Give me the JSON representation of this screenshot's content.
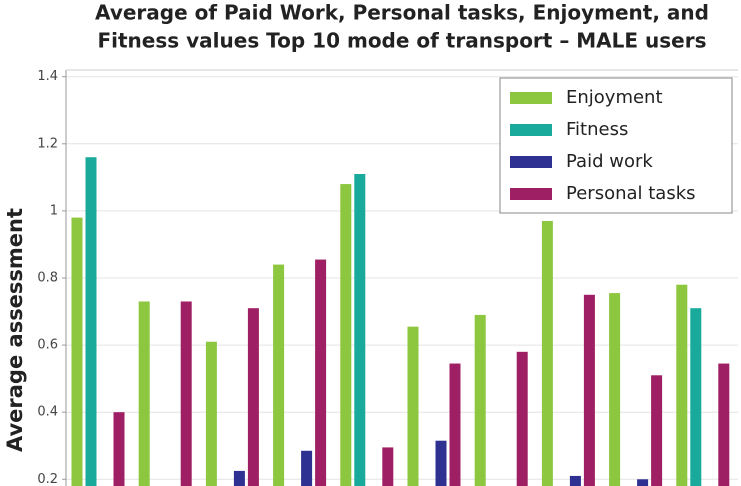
{
  "chart_data": {
    "type": "bar",
    "title": [
      "Average of Paid Work, Personal tasks, Enjoyment, and",
      "Fitness values Top 10 mode of transport – MALE users"
    ],
    "y_label": "Average assessment",
    "categories": [
      null,
      null,
      null,
      null,
      null,
      null,
      null,
      null,
      null,
      null
    ],
    "series": [
      {
        "name": "Enjoyment",
        "color": "#8dc63f",
        "values": [
          0.98,
          0.73,
          0.61,
          0.84,
          1.08,
          0.655,
          0.69,
          0.97,
          0.755,
          0.78
        ]
      },
      {
        "name": "Fitness",
        "color": "#1aaa9b",
        "values": [
          1.16,
          null,
          null,
          null,
          1.11,
          null,
          null,
          null,
          null,
          0.71
        ]
      },
      {
        "name": "Paid work",
        "color": "#2e3192",
        "values": [
          null,
          null,
          0.225,
          0.285,
          null,
          0.315,
          null,
          0.21,
          0.2,
          null
        ]
      },
      {
        "name": "Personal tasks",
        "color": "#9e1f63",
        "values": [
          0.4,
          0.73,
          0.71,
          0.855,
          0.295,
          0.545,
          0.58,
          0.75,
          0.51,
          0.545
        ]
      }
    ],
    "ylim": [
      0.18,
      1.42
    ],
    "yticks": [
      0.2,
      0.4,
      0.6,
      0.8,
      1,
      1.2,
      1.4
    ],
    "grid": true,
    "legend": "top-right"
  }
}
